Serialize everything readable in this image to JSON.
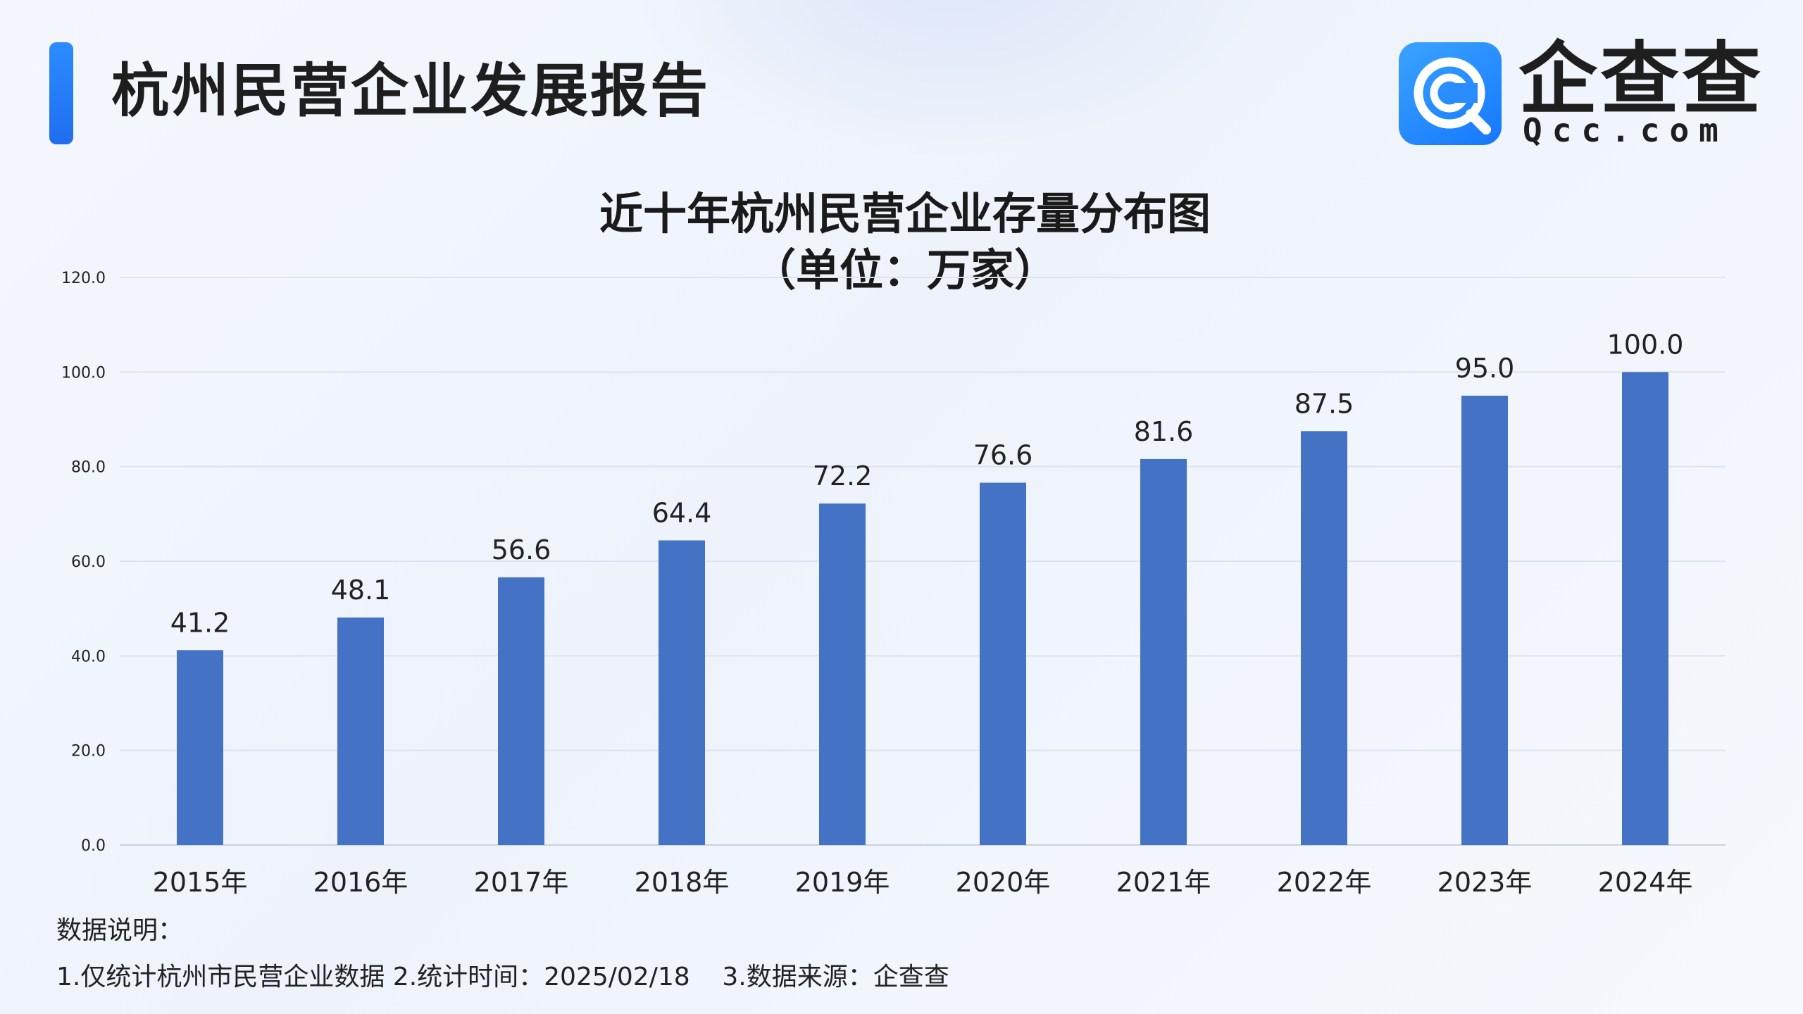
{
  "header": {
    "title": "杭州民营企业发展报告",
    "logo_text": "企查查",
    "logo_subtext": "Qcc.com",
    "logo_icon": "qcc-magnifier-logo-icon"
  },
  "colors": {
    "bar": "#4472c4",
    "accent": "#1f6ef0",
    "grid": "#dde3ee"
  },
  "chart_data": {
    "type": "bar",
    "title": "近十年杭州民营企业存量分布图",
    "subtitle": "（单位：万家）",
    "categories": [
      "2015年",
      "2016年",
      "2017年",
      "2018年",
      "2019年",
      "2020年",
      "2021年",
      "2022年",
      "2023年",
      "2024年"
    ],
    "values": [
      41.2,
      48.1,
      56.6,
      64.4,
      72.2,
      76.6,
      81.6,
      87.5,
      95.0,
      100.0
    ],
    "value_labels": [
      "41.2",
      "48.1",
      "56.6",
      "64.4",
      "72.2",
      "76.6",
      "81.6",
      "87.5",
      "95.0",
      "100.0"
    ],
    "ylim": [
      0,
      120
    ],
    "yticks": [
      "0.0",
      "20.0",
      "40.0",
      "60.0",
      "80.0",
      "100.0",
      "120.0"
    ],
    "xlabel": "",
    "ylabel": "",
    "grid": true,
    "legend": "none"
  },
  "notes": {
    "title": "数据说明：",
    "line": "1.仅统计杭州市民营企业数据 2.统计时间：2025/02/18    3.数据来源：企查查"
  }
}
